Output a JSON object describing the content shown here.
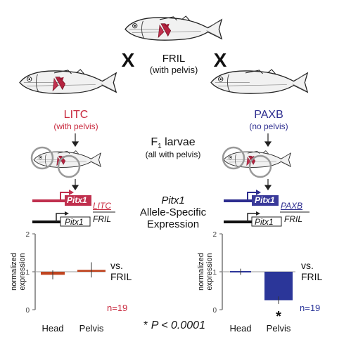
{
  "cross_symbol": "X",
  "top_fish": {
    "name": "FRIL",
    "note": "(with pelvis)"
  },
  "left_parent": {
    "name": "LITC",
    "note": "(with pelvis)",
    "color": "#c8273c"
  },
  "right_parent": {
    "name": "PAXB",
    "note": "(no pelvis)",
    "color": "#2d2d8f"
  },
  "f1": {
    "label_base": "F",
    "label_sub": "1",
    "label_rest": " larvae",
    "note": "(all with pelvis)"
  },
  "center_text": {
    "gene": "Pitx1",
    "line2": "Allele-Specific",
    "line3": "Expression"
  },
  "left_alleles": {
    "upper_gene": "Pitx1",
    "upper_strain": "LITC",
    "lower_gene": "Pitx1",
    "lower_strain": "FRIL"
  },
  "right_alleles": {
    "upper_gene": "Pitx1",
    "upper_strain": "PAXB",
    "lower_gene": "Pitx1",
    "lower_strain": "FRIL"
  },
  "significance": {
    "star": "*",
    "text": " P < 0.0001"
  },
  "chart_data": [
    {
      "type": "bar",
      "categories": [
        "Head",
        "Pelvis"
      ],
      "values": [
        0.92,
        1.05
      ],
      "error": [
        0.12,
        0.2
      ],
      "baseline": 1,
      "ylim": [
        0,
        2
      ],
      "yticks": [
        "0",
        "1",
        "2"
      ],
      "ylabel": "normalized expression",
      "reference_label": "vs. FRIL",
      "n_label": "n=19",
      "bar_color": "#c0441f",
      "n_color": "#c8273c"
    },
    {
      "type": "bar",
      "categories": [
        "Head",
        "Pelvis"
      ],
      "values": [
        1.0,
        0.25
      ],
      "error": [
        0.08,
        0.1
      ],
      "baseline": 1,
      "ylim": [
        0,
        2
      ],
      "yticks": [
        "0",
        "1",
        "2"
      ],
      "ylabel": "normalized expression",
      "reference_label": "vs. FRIL",
      "n_label": "n=19",
      "bar_color": "#2b3699",
      "n_color": "#2b3699",
      "significance_marker": "*"
    }
  ]
}
